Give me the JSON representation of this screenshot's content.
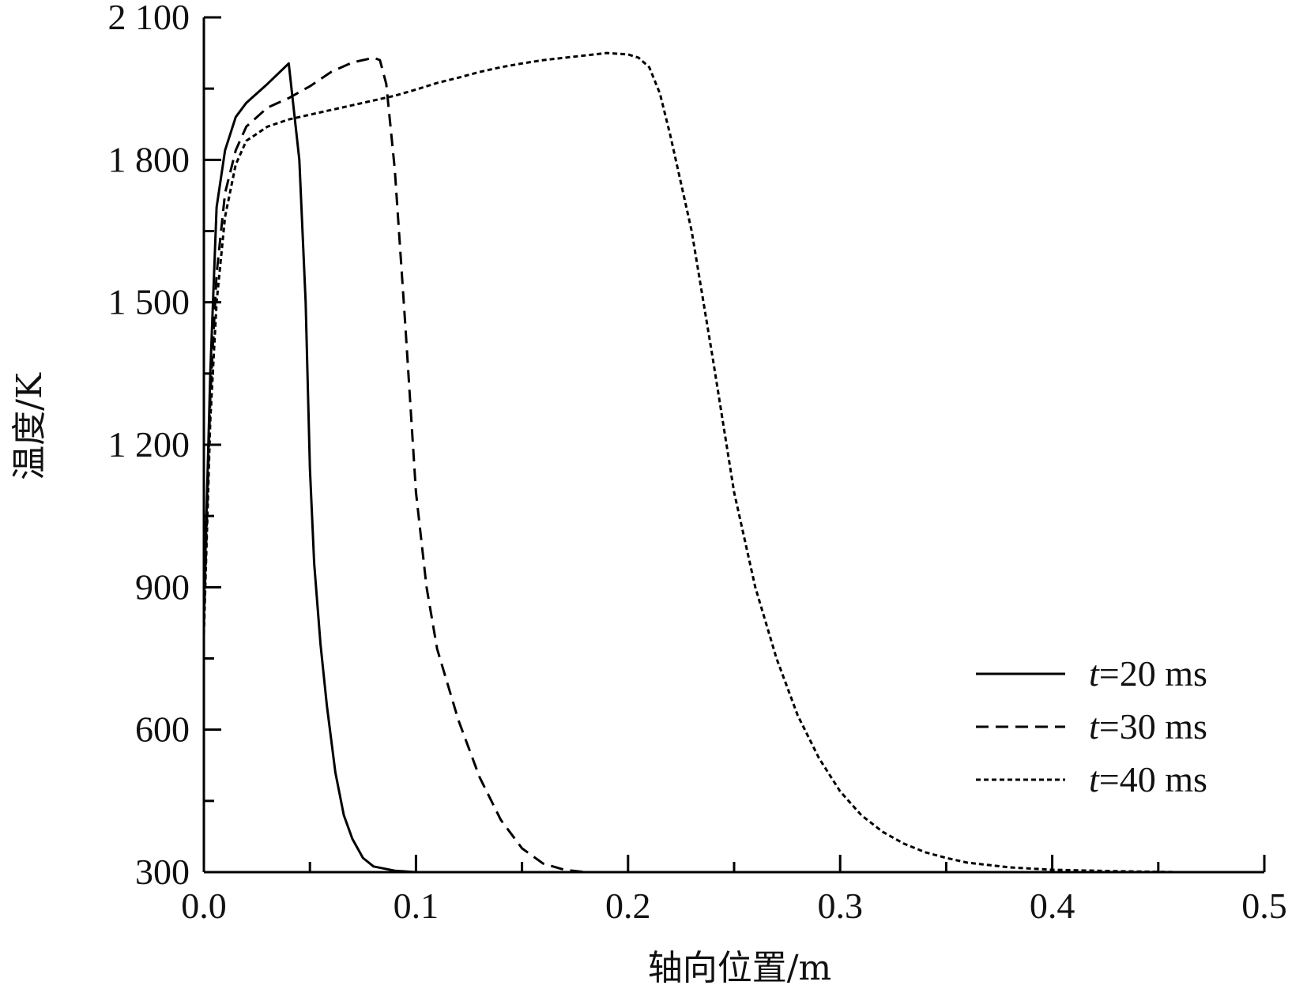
{
  "chart_data": {
    "type": "line",
    "title": "",
    "xlabel": "轴向位置/m",
    "ylabel": "温度/K",
    "xlim": [
      0,
      0.5
    ],
    "ylim": [
      300,
      2100
    ],
    "x_ticks": [
      0,
      0.1,
      0.2,
      0.3,
      0.4,
      0.5
    ],
    "x_tick_labels": [
      "0.0",
      "0.1",
      "0.2",
      "0.3",
      "0.4",
      "0.5"
    ],
    "y_ticks": [
      300,
      600,
      900,
      1200,
      1500,
      1800,
      2100
    ],
    "y_tick_labels": [
      "300",
      "600",
      "900",
      "1 200",
      "1 500",
      "1 800",
      "2 100"
    ],
    "x_minor_step": 0.05,
    "y_minor_step": 150,
    "grid": false,
    "legend_position": "right",
    "series": [
      {
        "name": "t=20 ms",
        "label_var": "t",
        "label_rest": "=20 ms",
        "style": "solid",
        "color": "#000000",
        "points": [
          [
            0.0,
            850
          ],
          [
            0.003,
            1350
          ],
          [
            0.006,
            1700
          ],
          [
            0.01,
            1820
          ],
          [
            0.015,
            1890
          ],
          [
            0.02,
            1920
          ],
          [
            0.03,
            1960
          ],
          [
            0.04,
            2003
          ],
          [
            0.045,
            1800
          ],
          [
            0.048,
            1500
          ],
          [
            0.05,
            1150
          ],
          [
            0.052,
            950
          ],
          [
            0.055,
            780
          ],
          [
            0.058,
            650
          ],
          [
            0.062,
            510
          ],
          [
            0.066,
            420
          ],
          [
            0.07,
            370
          ],
          [
            0.075,
            330
          ],
          [
            0.08,
            312
          ],
          [
            0.09,
            303
          ],
          [
            0.1,
            300
          ],
          [
            0.11,
            300
          ]
        ]
      },
      {
        "name": "t=30 ms",
        "label_var": "t",
        "label_rest": "=30 ms",
        "style": "dashed",
        "color": "#000000",
        "points": [
          [
            0.0,
            820
          ],
          [
            0.003,
            1300
          ],
          [
            0.006,
            1560
          ],
          [
            0.01,
            1730
          ],
          [
            0.015,
            1820
          ],
          [
            0.02,
            1870
          ],
          [
            0.03,
            1910
          ],
          [
            0.04,
            1930
          ],
          [
            0.05,
            1955
          ],
          [
            0.06,
            1985
          ],
          [
            0.07,
            2005
          ],
          [
            0.08,
            2015
          ],
          [
            0.083,
            2010
          ],
          [
            0.086,
            1960
          ],
          [
            0.09,
            1780
          ],
          [
            0.095,
            1450
          ],
          [
            0.1,
            1100
          ],
          [
            0.105,
            900
          ],
          [
            0.11,
            770
          ],
          [
            0.12,
            620
          ],
          [
            0.13,
            500
          ],
          [
            0.14,
            410
          ],
          [
            0.15,
            350
          ],
          [
            0.16,
            318
          ],
          [
            0.17,
            305
          ],
          [
            0.18,
            300
          ],
          [
            0.2,
            300
          ]
        ]
      },
      {
        "name": "t=40 ms",
        "label_var": "t",
        "label_rest": "=40 ms",
        "style": "dotted",
        "color": "#000000",
        "points": [
          [
            0.0,
            800
          ],
          [
            0.003,
            1250
          ],
          [
            0.006,
            1500
          ],
          [
            0.01,
            1680
          ],
          [
            0.015,
            1790
          ],
          [
            0.02,
            1840
          ],
          [
            0.03,
            1870
          ],
          [
            0.04,
            1885
          ],
          [
            0.05,
            1895
          ],
          [
            0.06,
            1905
          ],
          [
            0.07,
            1915
          ],
          [
            0.08,
            1925
          ],
          [
            0.09,
            1935
          ],
          [
            0.1,
            1948
          ],
          [
            0.11,
            1962
          ],
          [
            0.12,
            1973
          ],
          [
            0.13,
            1985
          ],
          [
            0.14,
            1995
          ],
          [
            0.15,
            2003
          ],
          [
            0.16,
            2010
          ],
          [
            0.17,
            2015
          ],
          [
            0.18,
            2020
          ],
          [
            0.19,
            2025
          ],
          [
            0.2,
            2022
          ],
          [
            0.205,
            2015
          ],
          [
            0.21,
            1995
          ],
          [
            0.215,
            1940
          ],
          [
            0.22,
            1850
          ],
          [
            0.23,
            1650
          ],
          [
            0.24,
            1380
          ],
          [
            0.25,
            1100
          ],
          [
            0.26,
            900
          ],
          [
            0.27,
            750
          ],
          [
            0.28,
            630
          ],
          [
            0.29,
            540
          ],
          [
            0.3,
            470
          ],
          [
            0.31,
            420
          ],
          [
            0.32,
            385
          ],
          [
            0.33,
            360
          ],
          [
            0.34,
            342
          ],
          [
            0.35,
            330
          ],
          [
            0.36,
            320
          ],
          [
            0.38,
            310
          ],
          [
            0.4,
            305
          ],
          [
            0.43,
            302
          ],
          [
            0.46,
            300
          ]
        ]
      }
    ]
  }
}
